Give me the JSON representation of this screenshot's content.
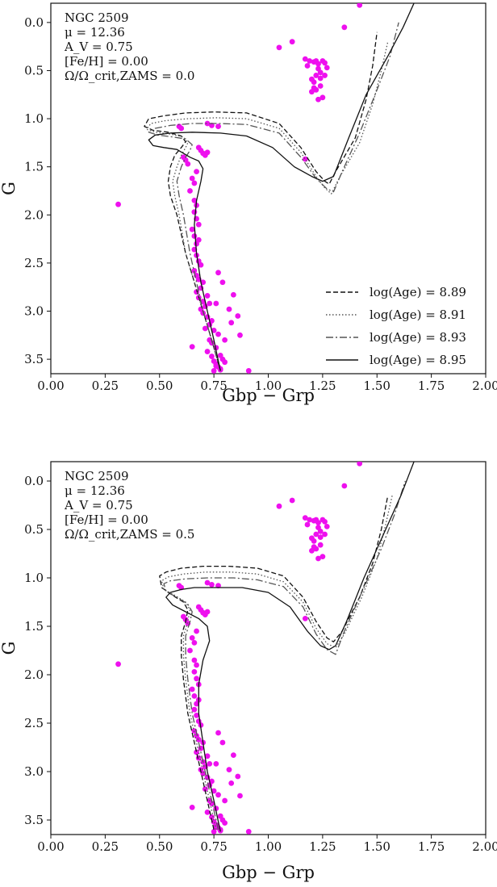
{
  "chart_data": [
    {
      "type": "line",
      "xlabel": "Gbp − Grp",
      "ylabel": "G",
      "xlim": [
        0.0,
        2.0
      ],
      "ylim": [
        3.65,
        -0.2
      ],
      "y_inverted": true,
      "x_ticks": [
        "0.00",
        "0.25",
        "0.50",
        "0.75",
        "1.00",
        "1.25",
        "1.50",
        "1.75",
        "2.00"
      ],
      "y_ticks": [
        "0.0",
        "0.5",
        "1.0",
        "1.5",
        "2.0",
        "2.5",
        "3.0",
        "3.5"
      ],
      "annotations": [
        "NGC 2509",
        "μ = 12.36",
        "A_V = 0.75",
        "[Fe/H] = 0.00",
        "Ω/Ω_crit,ZAMS = 0.0"
      ],
      "legend_position": "lower-right",
      "series": [
        {
          "name": "log(Age) = 8.89",
          "style": "dashed",
          "color": "#111111",
          "x": [
            0.78,
            0.74,
            0.7,
            0.66,
            0.62,
            0.58,
            0.55,
            0.54,
            0.55,
            0.57,
            0.6,
            0.62,
            0.6,
            0.54,
            0.47,
            0.43,
            0.45,
            0.52,
            0.62,
            0.75,
            0.9,
            1.05,
            1.15,
            1.22,
            1.26,
            1.28,
            1.31,
            1.4,
            1.45,
            1.48,
            1.5
          ],
          "y": [
            3.62,
            3.3,
            3.0,
            2.7,
            2.4,
            2.0,
            1.8,
            1.65,
            1.5,
            1.38,
            1.3,
            1.24,
            1.18,
            1.14,
            1.12,
            1.08,
            1.0,
            0.97,
            0.94,
            0.93,
            0.94,
            1.05,
            1.3,
            1.55,
            1.65,
            1.68,
            1.55,
            1.2,
            0.8,
            0.45,
            0.1
          ]
        },
        {
          "name": "log(Age) = 8.91",
          "style": "dotted",
          "color": "#555555",
          "x": [
            0.78,
            0.74,
            0.7,
            0.66,
            0.62,
            0.59,
            0.57,
            0.56,
            0.58,
            0.6,
            0.62,
            0.63,
            0.61,
            0.55,
            0.48,
            0.44,
            0.46,
            0.53,
            0.63,
            0.76,
            0.9,
            1.05,
            1.15,
            1.22,
            1.26,
            1.29,
            1.33,
            1.42,
            1.48,
            1.52,
            1.55
          ],
          "y": [
            3.62,
            3.3,
            3.0,
            2.7,
            2.4,
            2.0,
            1.8,
            1.65,
            1.5,
            1.38,
            1.3,
            1.25,
            1.19,
            1.16,
            1.14,
            1.11,
            1.05,
            1.02,
            1.0,
            0.99,
            1.0,
            1.1,
            1.35,
            1.6,
            1.72,
            1.78,
            1.6,
            1.25,
            0.85,
            0.5,
            0.2
          ]
        },
        {
          "name": "log(Age) = 8.93",
          "style": "dashdot",
          "color": "#555555",
          "x": [
            0.78,
            0.74,
            0.7,
            0.67,
            0.64,
            0.61,
            0.59,
            0.58,
            0.6,
            0.62,
            0.64,
            0.65,
            0.62,
            0.56,
            0.49,
            0.45,
            0.48,
            0.55,
            0.65,
            0.77,
            0.9,
            1.05,
            1.15,
            1.22,
            1.27,
            1.3,
            1.34,
            1.42,
            1.5,
            1.56,
            1.6
          ],
          "y": [
            3.62,
            3.3,
            3.0,
            2.7,
            2.4,
            2.0,
            1.8,
            1.65,
            1.5,
            1.4,
            1.33,
            1.27,
            1.21,
            1.19,
            1.17,
            1.14,
            1.1,
            1.07,
            1.05,
            1.05,
            1.06,
            1.15,
            1.4,
            1.62,
            1.73,
            1.76,
            1.55,
            1.15,
            0.7,
            0.35,
            0.0
          ]
        },
        {
          "name": "log(Age) = 8.95",
          "style": "solid",
          "color": "#111111",
          "x": [
            0.78,
            0.75,
            0.72,
            0.69,
            0.67,
            0.66,
            0.67,
            0.69,
            0.7,
            0.68,
            0.64,
            0.58,
            0.52,
            0.47,
            0.45,
            0.48,
            0.55,
            0.65,
            0.78,
            0.9,
            1.02,
            1.12,
            1.2,
            1.25,
            1.3,
            1.37,
            1.45,
            1.55,
            1.62,
            1.67
          ],
          "y": [
            3.62,
            3.3,
            3.0,
            2.7,
            2.4,
            2.1,
            1.85,
            1.65,
            1.52,
            1.44,
            1.4,
            1.32,
            1.3,
            1.28,
            1.22,
            1.17,
            1.15,
            1.14,
            1.15,
            1.18,
            1.3,
            1.5,
            1.6,
            1.65,
            1.6,
            1.2,
            0.75,
            0.35,
            0.05,
            -0.2
          ]
        }
      ],
      "scatter": {
        "color": "#ee10ee",
        "x": [
          1.42,
          1.35,
          1.05,
          1.11,
          1.17,
          1.18,
          1.19,
          1.21,
          1.22,
          1.23,
          1.23,
          1.24,
          1.25,
          1.26,
          1.27,
          1.26,
          1.22,
          1.2,
          1.21,
          1.24,
          1.24,
          1.22,
          1.2,
          1.23,
          1.25,
          1.21,
          0.31,
          1.17,
          0.72,
          0.74,
          0.77,
          0.61,
          0.62,
          0.63,
          0.68,
          0.69,
          0.7,
          0.71,
          0.72,
          0.67,
          0.65,
          0.66,
          0.64,
          0.66,
          0.67,
          0.66,
          0.67,
          0.68,
          0.65,
          0.66,
          0.68,
          0.67,
          0.66,
          0.67,
          0.68,
          0.69,
          0.66,
          0.67,
          0.68,
          0.7,
          0.69,
          0.67,
          0.68,
          0.7,
          0.71,
          0.69,
          0.72,
          0.73,
          0.7,
          0.72,
          0.74,
          0.73,
          0.71,
          0.75,
          0.77,
          0.73,
          0.74,
          0.76,
          0.72,
          0.78,
          0.79,
          0.8,
          0.76,
          0.78,
          0.75,
          0.77,
          0.79,
          0.76,
          0.84,
          0.82,
          0.83,
          0.86,
          0.87,
          0.8,
          0.74,
          0.75,
          0.76,
          0.77,
          0.78,
          0.65,
          0.91,
          0.6,
          0.59
        ],
        "y": [
          -0.18,
          0.05,
          0.26,
          0.2,
          0.38,
          0.45,
          0.4,
          0.41,
          0.4,
          0.43,
          0.48,
          0.52,
          0.4,
          0.42,
          0.47,
          0.55,
          0.55,
          0.59,
          0.62,
          0.58,
          0.66,
          0.7,
          0.72,
          0.8,
          0.78,
          0.68,
          1.89,
          1.42,
          1.05,
          1.07,
          1.08,
          1.4,
          1.43,
          1.47,
          1.3,
          1.33,
          1.36,
          1.38,
          1.35,
          1.55,
          1.62,
          1.67,
          1.75,
          1.85,
          1.9,
          1.97,
          2.04,
          2.1,
          2.15,
          2.22,
          2.26,
          2.3,
          2.36,
          2.42,
          2.48,
          2.52,
          2.58,
          2.63,
          2.67,
          2.7,
          2.76,
          2.8,
          2.86,
          2.9,
          2.95,
          2.98,
          2.84,
          2.92,
          3.02,
          3.06,
          3.1,
          3.14,
          3.18,
          3.2,
          3.24,
          3.3,
          3.33,
          3.38,
          3.42,
          3.46,
          3.5,
          3.53,
          3.57,
          3.6,
          3.62,
          2.6,
          2.7,
          2.92,
          2.83,
          2.98,
          3.12,
          3.05,
          3.25,
          3.3,
          3.47,
          3.52,
          3.55,
          3.58,
          3.61,
          3.37,
          3.62,
          1.1,
          1.08
        ]
      }
    },
    {
      "type": "line",
      "xlabel": "Gbp − Grp",
      "ylabel": "G",
      "xlim": [
        0.0,
        2.0
      ],
      "ylim": [
        3.65,
        -0.2
      ],
      "y_inverted": true,
      "x_ticks": [
        "0.00",
        "0.25",
        "0.50",
        "0.75",
        "1.00",
        "1.25",
        "1.50",
        "1.75",
        "2.00"
      ],
      "y_ticks": [
        "0.0",
        "0.5",
        "1.0",
        "1.5",
        "2.0",
        "2.5",
        "3.0",
        "3.5"
      ],
      "annotations": [
        "NGC 2509",
        "μ = 12.36",
        "A_V = 0.75",
        "[Fe/H] = 0.00",
        "Ω/Ω_crit,ZAMS = 0.5"
      ],
      "series": [
        {
          "name": "log(Age) = 8.89",
          "style": "dashed",
          "color": "#111111",
          "x": [
            0.75,
            0.72,
            0.69,
            0.66,
            0.63,
            0.61,
            0.6,
            0.6,
            0.62,
            0.63,
            0.61,
            0.56,
            0.51,
            0.5,
            0.53,
            0.6,
            0.7,
            0.82,
            0.95,
            1.07,
            1.16,
            1.22,
            1.27,
            1.3,
            1.34,
            1.42,
            1.48,
            1.52,
            1.55
          ],
          "y": [
            3.6,
            3.3,
            3.0,
            2.7,
            2.4,
            2.05,
            1.8,
            1.6,
            1.45,
            1.33,
            1.25,
            1.18,
            1.1,
            0.98,
            0.94,
            0.9,
            0.88,
            0.88,
            0.9,
            0.98,
            1.2,
            1.45,
            1.62,
            1.66,
            1.55,
            1.2,
            0.85,
            0.5,
            0.15
          ]
        },
        {
          "name": "log(Age) = 8.91",
          "style": "dotted",
          "color": "#555555",
          "x": [
            0.76,
            0.73,
            0.7,
            0.67,
            0.64,
            0.62,
            0.61,
            0.61,
            0.63,
            0.64,
            0.62,
            0.57,
            0.52,
            0.51,
            0.54,
            0.61,
            0.71,
            0.83,
            0.95,
            1.07,
            1.16,
            1.22,
            1.27,
            1.31,
            1.35,
            1.43,
            1.5,
            1.54,
            1.57
          ],
          "y": [
            3.6,
            3.3,
            3.0,
            2.7,
            2.4,
            2.05,
            1.8,
            1.6,
            1.45,
            1.33,
            1.25,
            1.18,
            1.12,
            1.03,
            0.99,
            0.96,
            0.94,
            0.94,
            0.96,
            1.04,
            1.25,
            1.52,
            1.68,
            1.72,
            1.58,
            1.2,
            0.8,
            0.45,
            0.15
          ]
        },
        {
          "name": "log(Age) = 8.93",
          "style": "dashdot",
          "color": "#555555",
          "x": [
            0.77,
            0.74,
            0.71,
            0.68,
            0.65,
            0.63,
            0.62,
            0.62,
            0.64,
            0.65,
            0.63,
            0.58,
            0.53,
            0.52,
            0.55,
            0.62,
            0.72,
            0.84,
            0.95,
            1.07,
            1.16,
            1.22,
            1.27,
            1.31,
            1.35,
            1.43,
            1.52,
            1.58,
            1.63
          ],
          "y": [
            3.6,
            3.3,
            3.0,
            2.7,
            2.4,
            2.05,
            1.8,
            1.6,
            1.45,
            1.35,
            1.27,
            1.2,
            1.14,
            1.06,
            1.03,
            1.01,
            1.0,
            1.0,
            1.02,
            1.09,
            1.3,
            1.58,
            1.74,
            1.79,
            1.55,
            1.15,
            0.7,
            0.35,
            0.0
          ]
        },
        {
          "name": "log(Age) = 8.95",
          "style": "solid",
          "color": "#111111",
          "x": [
            0.78,
            0.75,
            0.72,
            0.7,
            0.68,
            0.68,
            0.7,
            0.73,
            0.72,
            0.68,
            0.62,
            0.56,
            0.53,
            0.55,
            0.6,
            0.66,
            0.75,
            0.88,
            1.0,
            1.1,
            1.18,
            1.24,
            1.28,
            1.31,
            1.36,
            1.44,
            1.54,
            1.61,
            1.67
          ],
          "y": [
            3.62,
            3.3,
            3.0,
            2.7,
            2.4,
            2.1,
            1.85,
            1.65,
            1.5,
            1.42,
            1.35,
            1.28,
            1.2,
            1.15,
            1.12,
            1.1,
            1.1,
            1.1,
            1.15,
            1.3,
            1.55,
            1.7,
            1.74,
            1.7,
            1.45,
            1.0,
            0.5,
            0.15,
            -0.2
          ]
        }
      ],
      "scatter": {
        "color": "#ee10ee",
        "x": [
          1.42,
          1.35,
          1.05,
          1.11,
          1.17,
          1.18,
          1.19,
          1.21,
          1.22,
          1.23,
          1.23,
          1.24,
          1.25,
          1.26,
          1.27,
          1.26,
          1.22,
          1.2,
          1.21,
          1.24,
          1.24,
          1.22,
          1.2,
          1.23,
          1.25,
          1.21,
          0.31,
          1.17,
          0.72,
          0.74,
          0.77,
          0.61,
          0.62,
          0.63,
          0.68,
          0.69,
          0.7,
          0.71,
          0.72,
          0.67,
          0.65,
          0.66,
          0.64,
          0.66,
          0.67,
          0.66,
          0.67,
          0.68,
          0.65,
          0.66,
          0.68,
          0.67,
          0.66,
          0.67,
          0.68,
          0.69,
          0.66,
          0.67,
          0.68,
          0.7,
          0.69,
          0.67,
          0.68,
          0.7,
          0.71,
          0.69,
          0.72,
          0.73,
          0.7,
          0.72,
          0.74,
          0.73,
          0.71,
          0.75,
          0.77,
          0.73,
          0.74,
          0.76,
          0.72,
          0.78,
          0.79,
          0.8,
          0.76,
          0.78,
          0.75,
          0.77,
          0.79,
          0.76,
          0.84,
          0.82,
          0.83,
          0.86,
          0.87,
          0.8,
          0.74,
          0.75,
          0.76,
          0.77,
          0.78,
          0.65,
          0.91,
          0.6,
          0.59
        ],
        "y": [
          -0.18,
          0.05,
          0.26,
          0.2,
          0.38,
          0.45,
          0.4,
          0.41,
          0.4,
          0.43,
          0.48,
          0.52,
          0.4,
          0.42,
          0.47,
          0.55,
          0.55,
          0.59,
          0.62,
          0.58,
          0.66,
          0.7,
          0.72,
          0.8,
          0.78,
          0.68,
          1.89,
          1.42,
          1.05,
          1.07,
          1.08,
          1.4,
          1.43,
          1.47,
          1.3,
          1.33,
          1.36,
          1.38,
          1.35,
          1.55,
          1.62,
          1.67,
          1.75,
          1.85,
          1.9,
          1.97,
          2.04,
          2.1,
          2.15,
          2.22,
          2.26,
          2.3,
          2.36,
          2.42,
          2.48,
          2.52,
          2.58,
          2.63,
          2.67,
          2.7,
          2.76,
          2.8,
          2.86,
          2.9,
          2.95,
          2.98,
          2.84,
          2.92,
          3.02,
          3.06,
          3.1,
          3.14,
          3.18,
          3.2,
          3.24,
          3.3,
          3.33,
          3.38,
          3.42,
          3.46,
          3.5,
          3.53,
          3.57,
          3.6,
          3.62,
          2.6,
          2.7,
          2.92,
          2.83,
          2.98,
          3.12,
          3.05,
          3.25,
          3.3,
          3.47,
          3.52,
          3.55,
          3.58,
          3.61,
          3.37,
          3.62,
          1.1,
          1.08
        ]
      }
    }
  ]
}
